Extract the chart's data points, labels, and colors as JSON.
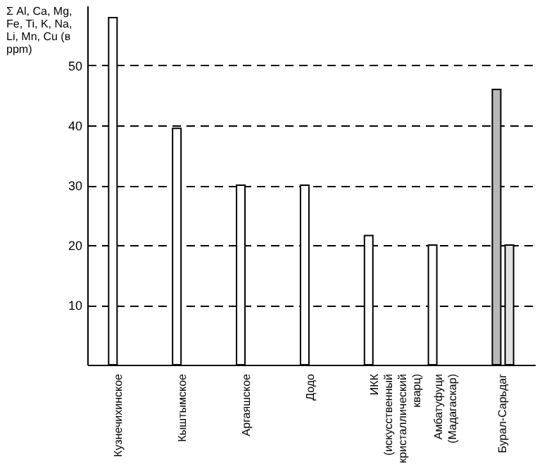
{
  "chart_data": {
    "type": "bar",
    "ylabel": "Σ Al, Ca, Mg, Fe, Ti, K, Na, Li, Mn, Cu (в ppm)",
    "categories": [
      "Кузнечихинское",
      "Кыштымское",
      "Аргаяшское",
      "Додо",
      "ИКК (искусственный кристаллический кварц)",
      "Амбатуфуци (Мадагаскар)",
      "Бурал-Сарьдаг"
    ],
    "series": [
      {
        "color": "#ffffff",
        "values": [
          58,
          39.5,
          30,
          30,
          21.6,
          20,
          null
        ]
      },
      {
        "color": "#b8b8b8",
        "values": [
          null,
          null,
          null,
          null,
          null,
          null,
          46
        ]
      },
      {
        "color": "#e0e0e0",
        "values": [
          null,
          null,
          null,
          null,
          null,
          null,
          20
        ]
      }
    ],
    "ylim": [
      0,
      60
    ],
    "yticks": [
      10,
      20,
      30,
      40,
      50
    ],
    "grid": "y"
  }
}
